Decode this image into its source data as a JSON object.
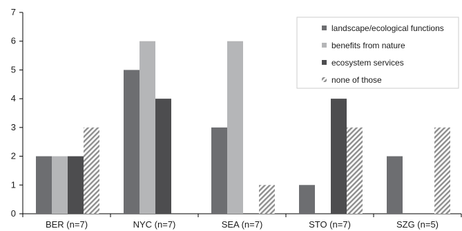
{
  "chart_data": {
    "type": "bar",
    "categories": [
      "BER (n=7)",
      "NYC (n=7)",
      "SEA (n=7)",
      "STO (n=7)",
      "SZG (n=5)"
    ],
    "series": [
      {
        "name": "landscape/ecological functions",
        "values": [
          2,
          5,
          3,
          1,
          2
        ],
        "color": "#6d6e71",
        "pattern": "solid"
      },
      {
        "name": "benefits from nature",
        "values": [
          2,
          6,
          6,
          0,
          0
        ],
        "color": "#b5b6b8",
        "pattern": "solid"
      },
      {
        "name": "ecosystem services",
        "values": [
          2,
          4,
          0,
          4,
          0
        ],
        "color": "#4d4d4f",
        "pattern": "solid"
      },
      {
        "name": "none of those",
        "values": [
          3,
          0,
          1,
          3,
          3
        ],
        "color": "#9a9a9a",
        "pattern": "hatch"
      }
    ],
    "yticks": [
      "0",
      "1",
      "2",
      "3",
      "4",
      "5",
      "6",
      "7"
    ],
    "ylim": [
      0,
      7
    ],
    "grid": false,
    "legend_position": "top-right"
  }
}
